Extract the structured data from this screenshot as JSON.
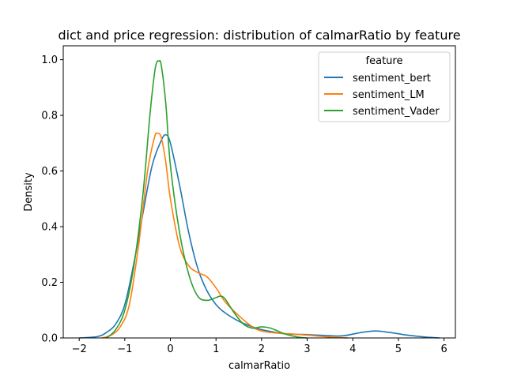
{
  "chart_data": {
    "type": "line",
    "title": "dict and price regression: distribution of calmarRatio by feature",
    "xlabel": "calmarRatio",
    "ylabel": "Density",
    "xlim": [
      -2.35,
      6.25
    ],
    "ylim": [
      0,
      1.05
    ],
    "xticks": [
      -2,
      -1,
      0,
      1,
      2,
      3,
      4,
      5,
      6
    ],
    "yticks": [
      0.0,
      0.2,
      0.4,
      0.6,
      0.8,
      1.0
    ],
    "xtick_labels": [
      "−2",
      "−1",
      "0",
      "1",
      "2",
      "3",
      "4",
      "5",
      "6"
    ],
    "ytick_labels": [
      "0.0",
      "0.2",
      "0.4",
      "0.6",
      "0.8",
      "1.0"
    ],
    "grid": false,
    "legend": {
      "title": "feature",
      "placement": "top-right"
    },
    "series": [
      {
        "name": "sentiment_bert",
        "color": "#1f77b4",
        "x": [
          -2.0,
          -1.6,
          -1.4,
          -1.2,
          -1.0,
          -0.8,
          -0.6,
          -0.4,
          -0.2,
          -0.1,
          0.0,
          0.2,
          0.4,
          0.6,
          0.8,
          1.0,
          1.2,
          1.5,
          1.8,
          2.0,
          2.5,
          3.0,
          3.5,
          3.8,
          4.2,
          4.5,
          4.8,
          5.2,
          5.6,
          5.9
        ],
        "y": [
          0.0,
          0.005,
          0.02,
          0.05,
          0.12,
          0.27,
          0.45,
          0.62,
          0.71,
          0.73,
          0.7,
          0.55,
          0.38,
          0.25,
          0.17,
          0.12,
          0.09,
          0.06,
          0.04,
          0.03,
          0.015,
          0.012,
          0.008,
          0.008,
          0.02,
          0.025,
          0.02,
          0.01,
          0.003,
          0.0
        ]
      },
      {
        "name": "sentiment_LM",
        "color": "#ff7f0e",
        "x": [
          -1.5,
          -1.3,
          -1.1,
          -0.9,
          -0.7,
          -0.5,
          -0.35,
          -0.28,
          -0.2,
          -0.1,
          0.0,
          0.2,
          0.4,
          0.6,
          0.8,
          1.0,
          1.2,
          1.5,
          1.8,
          2.0,
          2.3,
          2.6,
          3.0,
          3.5,
          3.9
        ],
        "y": [
          0.0,
          0.01,
          0.04,
          0.12,
          0.33,
          0.6,
          0.72,
          0.735,
          0.72,
          0.63,
          0.5,
          0.33,
          0.26,
          0.235,
          0.22,
          0.18,
          0.13,
          0.08,
          0.04,
          0.025,
          0.018,
          0.015,
          0.01,
          0.003,
          0.0
        ]
      },
      {
        "name": "sentiment_Vader",
        "color": "#2ca02c",
        "x": [
          -1.4,
          -1.2,
          -1.0,
          -0.8,
          -0.6,
          -0.45,
          -0.35,
          -0.3,
          -0.25,
          -0.2,
          -0.1,
          0.0,
          0.2,
          0.4,
          0.6,
          0.8,
          1.0,
          1.1,
          1.2,
          1.4,
          1.6,
          1.8,
          2.0,
          2.2,
          2.5,
          2.8,
          3.0
        ],
        "y": [
          0.0,
          0.03,
          0.1,
          0.26,
          0.52,
          0.8,
          0.95,
          0.99,
          0.995,
          0.98,
          0.84,
          0.62,
          0.38,
          0.23,
          0.15,
          0.135,
          0.145,
          0.15,
          0.14,
          0.09,
          0.05,
          0.035,
          0.04,
          0.035,
          0.015,
          0.003,
          0.0
        ]
      }
    ]
  }
}
